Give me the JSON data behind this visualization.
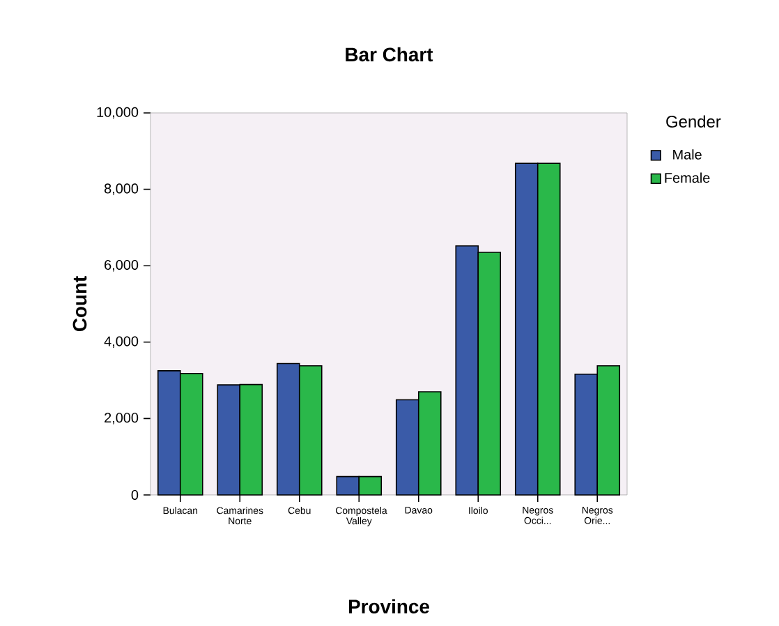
{
  "chart_data": {
    "type": "bar",
    "title": "Bar Chart",
    "xlabel": "Province",
    "ylabel": "Count",
    "legend_title": "Gender",
    "legend": "right",
    "grid": false,
    "categories": [
      "Bulacan",
      "Camarines Norte",
      "Cebu",
      "Compostela Valley",
      "Davao",
      "Iloilo",
      "Negros Occi...",
      "Negros Orie..."
    ],
    "series": [
      {
        "name": "Male",
        "color": "#3a5ba8",
        "values": [
          3250,
          2880,
          3440,
          480,
          2490,
          6520,
          8680,
          3160
        ]
      },
      {
        "name": "Female",
        "color": "#2ab84a",
        "values": [
          3180,
          2890,
          3380,
          480,
          2700,
          6350,
          8680,
          3380
        ]
      }
    ],
    "ylim": [
      0,
      10000
    ],
    "yticks": [
      {
        "value": 0,
        "label": "0"
      },
      {
        "value": 2000,
        "label": "2,000"
      },
      {
        "value": 4000,
        "label": "4,000"
      },
      {
        "value": 6000,
        "label": "6,000"
      },
      {
        "value": 8000,
        "label": "8,000"
      },
      {
        "value": 10000,
        "label": "10,000"
      }
    ]
  }
}
